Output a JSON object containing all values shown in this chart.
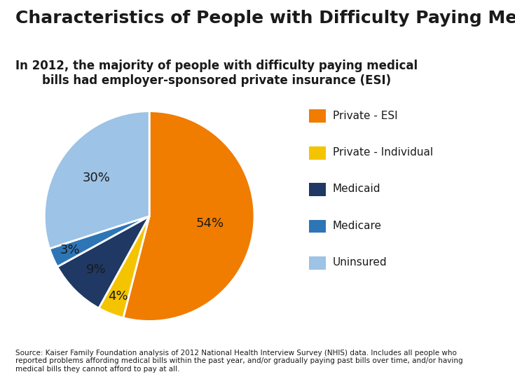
{
  "title": "Characteristics of People with Difficulty Paying Medical Bills",
  "subtitle": "In 2012, the majority of people with difficulty paying medical\nbills had employer-sponsored private insurance (ESI)",
  "slices": [
    54,
    4,
    9,
    3,
    30
  ],
  "labels": [
    "Private - ESI",
    "Private - Individual",
    "Medicaid",
    "Medicare",
    "Uninsured"
  ],
  "colors": [
    "#F07C00",
    "#F5C400",
    "#1F3864",
    "#2E75B6",
    "#9DC3E6"
  ],
  "pct_labels": [
    "54%",
    "4%",
    "9%",
    "3%",
    "30%"
  ],
  "source_text": "Source: Kaiser Family Foundation analysis of 2012 National Health Interview Survey (NHIS) data. Includes all people who\nreported problems affording medical bills within the past year, and/or gradually paying past bills over time, and/or having\nmedical bills they cannot afford to pay at all.",
  "background_color": "#FFFFFF",
  "title_fontsize": 18,
  "subtitle_fontsize": 12,
  "legend_fontsize": 11,
  "source_fontsize": 7.5,
  "pct_fontsize": 13
}
